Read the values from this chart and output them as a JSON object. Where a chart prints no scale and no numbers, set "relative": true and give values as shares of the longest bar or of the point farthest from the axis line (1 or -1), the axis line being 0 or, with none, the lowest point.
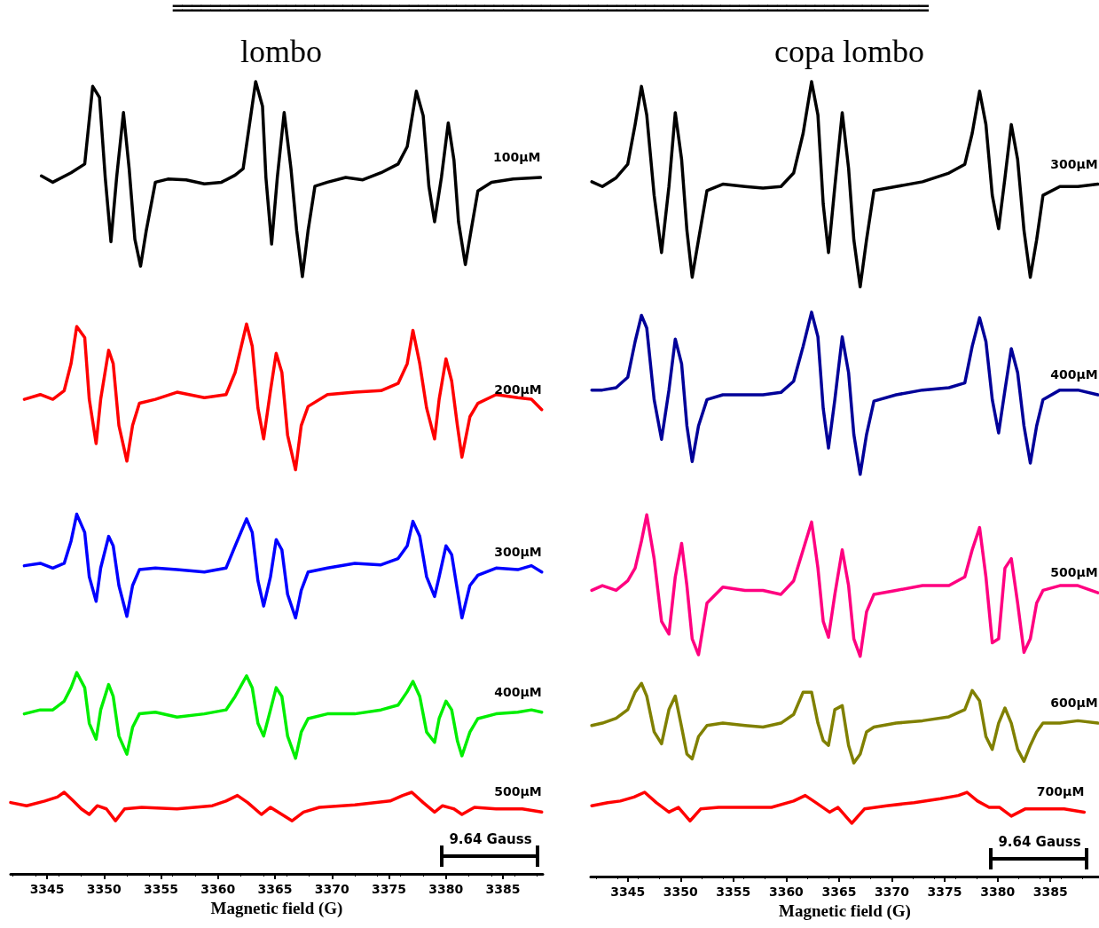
{
  "chart_data": [
    {
      "type": "line",
      "title": "lombo",
      "xlabel": "Magnetic field (G)",
      "relative": true,
      "legend": false,
      "grid": false,
      "marker": "none",
      "line_style": "solid",
      "xlim": [
        3341.8,
        3388.5
      ],
      "xticks": [
        3345,
        3350,
        3355,
        3360,
        3365,
        3370,
        3375,
        3380,
        3385
      ],
      "annotations": [
        "9.64 Gauss",
        "================================================================================"
      ],
      "series": [
        {
          "name": "100μM",
          "color": "#000000",
          "x": [
            3344.5,
            3345.5,
            3347.1,
            3348.3,
            3349.0,
            3349.6,
            3350.1,
            3350.6,
            3351.1,
            3351.7,
            3352.2,
            3352.7,
            3353.2,
            3353.7,
            3354.5,
            3355.6,
            3357.2,
            3358.8,
            3360.3,
            3361.5,
            3362.2,
            3363.3,
            3363.9,
            3364.2,
            3364.7,
            3365.2,
            3365.8,
            3366.4,
            3366.9,
            3367.4,
            3367.9,
            3368.5,
            3369.6,
            3371.2,
            3372.7,
            3374.3,
            3375.8,
            3376.6,
            3377.4,
            3378.0,
            3378.5,
            3379.0,
            3379.6,
            3380.2,
            3380.7,
            3381.1,
            3381.7,
            3382.2,
            3382.8,
            3384.0,
            3385.9,
            3388.3
          ],
          "values": [
            0.881,
            0.873,
            0.885,
            0.896,
            0.994,
            0.98,
            0.879,
            0.798,
            0.879,
            0.961,
            0.89,
            0.801,
            0.767,
            0.812,
            0.873,
            0.877,
            0.876,
            0.871,
            0.873,
            0.882,
            0.89,
            1.0,
            0.969,
            0.879,
            0.795,
            0.879,
            0.961,
            0.89,
            0.812,
            0.754,
            0.812,
            0.868,
            0.873,
            0.879,
            0.876,
            0.885,
            0.896,
            0.918,
            0.988,
            0.957,
            0.868,
            0.823,
            0.879,
            0.948,
            0.901,
            0.823,
            0.769,
            0.812,
            0.862,
            0.873,
            0.877,
            0.879
          ]
        },
        {
          "name": "200μM",
          "color": "#ff0000",
          "x": [
            3343.0,
            3344.4,
            3345.5,
            3346.5,
            3347.1,
            3347.6,
            3348.3,
            3348.7,
            3349.3,
            3349.7,
            3350.4,
            3350.8,
            3351.3,
            3352.0,
            3352.5,
            3353.1,
            3354.5,
            3356.4,
            3358.8,
            3360.7,
            3361.5,
            3362.5,
            3363.0,
            3363.5,
            3364.0,
            3364.6,
            3365.1,
            3365.6,
            3366.1,
            3366.8,
            3367.3,
            3367.9,
            3369.6,
            3372.0,
            3374.3,
            3375.8,
            3376.6,
            3377.1,
            3377.7,
            3378.3,
            3379.0,
            3379.4,
            3380.0,
            3380.5,
            3381.0,
            3381.4,
            3382.1,
            3382.8,
            3384.4,
            3386.3,
            3387.5,
            3388.4
          ],
          "values": [
            0.599,
            0.605,
            0.599,
            0.61,
            0.644,
            0.691,
            0.677,
            0.599,
            0.543,
            0.599,
            0.661,
            0.644,
            0.566,
            0.521,
            0.566,
            0.594,
            0.599,
            0.608,
            0.601,
            0.605,
            0.633,
            0.694,
            0.666,
            0.588,
            0.549,
            0.61,
            0.657,
            0.633,
            0.554,
            0.51,
            0.566,
            0.59,
            0.605,
            0.608,
            0.61,
            0.619,
            0.644,
            0.686,
            0.644,
            0.588,
            0.549,
            0.599,
            0.65,
            0.622,
            0.566,
            0.526,
            0.577,
            0.594,
            0.605,
            0.601,
            0.599,
            0.586
          ]
        },
        {
          "name": "300μM",
          "color": "#0000ff",
          "x": [
            3343.0,
            3344.4,
            3345.5,
            3346.5,
            3347.1,
            3347.6,
            3348.3,
            3348.7,
            3349.3,
            3349.7,
            3350.4,
            3350.8,
            3351.3,
            3352.0,
            3352.5,
            3353.1,
            3354.5,
            3356.4,
            3358.8,
            3360.7,
            3361.5,
            3362.5,
            3363.0,
            3363.5,
            3364.0,
            3364.6,
            3365.1,
            3365.6,
            3366.1,
            3366.8,
            3367.3,
            3367.9,
            3369.6,
            3372.0,
            3374.3,
            3375.8,
            3376.6,
            3377.1,
            3377.7,
            3378.3,
            3379.0,
            3379.4,
            3380.0,
            3380.5,
            3381.0,
            3381.4,
            3382.1,
            3382.8,
            3384.4,
            3386.3,
            3387.5,
            3388.4
          ],
          "values": [
            0.389,
            0.392,
            0.386,
            0.392,
            0.42,
            0.454,
            0.431,
            0.375,
            0.344,
            0.386,
            0.426,
            0.414,
            0.364,
            0.325,
            0.364,
            0.384,
            0.386,
            0.384,
            0.381,
            0.386,
            0.414,
            0.448,
            0.431,
            0.37,
            0.338,
            0.375,
            0.422,
            0.409,
            0.353,
            0.323,
            0.358,
            0.381,
            0.386,
            0.392,
            0.39,
            0.398,
            0.414,
            0.445,
            0.426,
            0.375,
            0.35,
            0.375,
            0.414,
            0.403,
            0.358,
            0.323,
            0.364,
            0.377,
            0.386,
            0.384,
            0.389,
            0.381
          ]
        },
        {
          "name": "400μM",
          "color": "#00ee00",
          "x": [
            3343.0,
            3344.4,
            3345.5,
            3346.5,
            3347.1,
            3347.6,
            3348.3,
            3348.7,
            3349.3,
            3349.7,
            3350.4,
            3350.8,
            3351.3,
            3352.0,
            3352.5,
            3353.1,
            3354.5,
            3356.4,
            3358.8,
            3360.7,
            3361.5,
            3362.5,
            3363.0,
            3363.5,
            3364.0,
            3364.6,
            3365.1,
            3365.6,
            3366.1,
            3366.8,
            3367.3,
            3367.9,
            3369.6,
            3372.0,
            3374.3,
            3375.8,
            3376.6,
            3377.1,
            3377.7,
            3378.3,
            3379.0,
            3379.4,
            3380.0,
            3380.5,
            3381.0,
            3381.4,
            3382.1,
            3382.8,
            3384.4,
            3386.3,
            3387.5,
            3388.4
          ],
          "values": [
            0.202,
            0.207,
            0.207,
            0.218,
            0.235,
            0.254,
            0.235,
            0.19,
            0.17,
            0.207,
            0.239,
            0.224,
            0.174,
            0.151,
            0.185,
            0.202,
            0.204,
            0.198,
            0.202,
            0.207,
            0.224,
            0.25,
            0.235,
            0.19,
            0.174,
            0.207,
            0.235,
            0.224,
            0.174,
            0.146,
            0.179,
            0.196,
            0.202,
            0.202,
            0.207,
            0.213,
            0.23,
            0.243,
            0.224,
            0.179,
            0.166,
            0.196,
            0.218,
            0.207,
            0.168,
            0.149,
            0.179,
            0.196,
            0.202,
            0.204,
            0.207,
            0.204
          ]
        },
        {
          "name": "500μM",
          "color": "#ff0000",
          "x": [
            3341.8,
            3343.2,
            3344.8,
            3345.9,
            3346.5,
            3347.3,
            3348.0,
            3348.7,
            3349.4,
            3350.2,
            3351.0,
            3351.8,
            3353.3,
            3356.4,
            3359.5,
            3360.7,
            3361.7,
            3362.6,
            3363.8,
            3364.6,
            3365.6,
            3366.5,
            3367.5,
            3368.9,
            3372.0,
            3375.1,
            3376.2,
            3377.0,
            3378.0,
            3379.0,
            3379.7,
            3380.7,
            3381.4,
            3382.5,
            3384.4,
            3386.7,
            3388.4
          ],
          "values": [
            0.09,
            0.086,
            0.092,
            0.097,
            0.103,
            0.092,
            0.082,
            0.075,
            0.086,
            0.082,
            0.067,
            0.082,
            0.084,
            0.082,
            0.086,
            0.092,
            0.099,
            0.09,
            0.075,
            0.084,
            0.075,
            0.067,
            0.078,
            0.084,
            0.087,
            0.092,
            0.099,
            0.103,
            0.09,
            0.078,
            0.086,
            0.082,
            0.075,
            0.084,
            0.082,
            0.082,
            0.078
          ]
        }
      ]
    },
    {
      "type": "line",
      "title": "copa lombo",
      "xlabel": "Magnetic field (G)",
      "relative": true,
      "legend": false,
      "grid": false,
      "marker": "none",
      "line_style": "solid",
      "xlim": [
        3341.5,
        3389.6
      ],
      "xticks": [
        3345,
        3350,
        3355,
        3360,
        3365,
        3370,
        3375,
        3380,
        3385
      ],
      "annotations": [
        "9.64 Gauss"
      ],
      "series": [
        {
          "name": "300μM",
          "color": "#000000",
          "x": [
            3341.6,
            3342.6,
            3343.9,
            3345.0,
            3345.7,
            3346.3,
            3346.8,
            3347.5,
            3348.2,
            3348.9,
            3349.5,
            3350.1,
            3350.6,
            3351.1,
            3351.7,
            3352.5,
            3354.0,
            3356.1,
            3357.8,
            3359.5,
            3360.7,
            3361.6,
            3362.4,
            3363.0,
            3363.5,
            3364.0,
            3364.6,
            3365.3,
            3365.9,
            3366.4,
            3367.0,
            3367.6,
            3368.3,
            3370.4,
            3372.9,
            3375.4,
            3376.9,
            3377.6,
            3378.3,
            3378.9,
            3379.5,
            3380.1,
            3380.7,
            3381.3,
            3381.9,
            3382.5,
            3383.1,
            3383.7,
            3384.3,
            3385.9,
            3387.6,
            3389.5
          ],
          "values": [
            0.874,
            0.868,
            0.879,
            0.896,
            0.946,
            0.994,
            0.958,
            0.857,
            0.785,
            0.868,
            0.961,
            0.902,
            0.813,
            0.754,
            0.801,
            0.863,
            0.871,
            0.868,
            0.866,
            0.868,
            0.885,
            0.935,
            1.0,
            0.958,
            0.846,
            0.785,
            0.868,
            0.961,
            0.891,
            0.801,
            0.742,
            0.801,
            0.863,
            0.868,
            0.874,
            0.885,
            0.896,
            0.935,
            0.988,
            0.946,
            0.857,
            0.815,
            0.879,
            0.946,
            0.902,
            0.813,
            0.754,
            0.801,
            0.857,
            0.868,
            0.868,
            0.871
          ]
        },
        {
          "name": "400μM",
          "color": "#000099",
          "x": [
            3341.6,
            3342.6,
            3343.9,
            3345.0,
            3345.7,
            3346.3,
            3346.8,
            3347.5,
            3348.2,
            3348.9,
            3349.5,
            3350.1,
            3350.6,
            3351.1,
            3351.7,
            3352.5,
            3354.0,
            3356.1,
            3357.8,
            3359.5,
            3360.7,
            3361.6,
            3362.4,
            3363.0,
            3363.5,
            3364.0,
            3364.6,
            3365.3,
            3365.9,
            3366.4,
            3367.0,
            3367.6,
            3368.3,
            3370.4,
            3372.9,
            3375.4,
            3376.9,
            3377.6,
            3378.3,
            3378.9,
            3379.5,
            3380.1,
            3380.7,
            3381.3,
            3381.9,
            3382.5,
            3383.1,
            3383.7,
            3384.3,
            3385.9,
            3387.6,
            3389.5
          ],
          "values": [
            0.612,
            0.612,
            0.615,
            0.628,
            0.673,
            0.706,
            0.69,
            0.6,
            0.55,
            0.612,
            0.676,
            0.645,
            0.567,
            0.522,
            0.567,
            0.6,
            0.606,
            0.606,
            0.606,
            0.609,
            0.623,
            0.667,
            0.71,
            0.679,
            0.589,
            0.539,
            0.6,
            0.679,
            0.634,
            0.556,
            0.506,
            0.556,
            0.598,
            0.606,
            0.612,
            0.615,
            0.621,
            0.667,
            0.703,
            0.673,
            0.6,
            0.558,
            0.612,
            0.664,
            0.634,
            0.567,
            0.52,
            0.567,
            0.6,
            0.612,
            0.612,
            0.606
          ]
        },
        {
          "name": "500μM",
          "color": "#ff0080",
          "x": [
            3341.6,
            3342.6,
            3343.9,
            3345.0,
            3345.7,
            3346.3,
            3346.8,
            3347.5,
            3348.2,
            3348.9,
            3349.5,
            3350.1,
            3350.6,
            3351.1,
            3351.7,
            3352.5,
            3354.0,
            3356.1,
            3357.8,
            3359.5,
            3360.7,
            3361.6,
            3362.4,
            3363.0,
            3363.5,
            3364.0,
            3364.6,
            3365.3,
            3365.9,
            3366.4,
            3367.0,
            3367.6,
            3368.3,
            3370.4,
            3372.9,
            3375.4,
            3376.9,
            3377.6,
            3378.3,
            3378.9,
            3379.5,
            3380.1,
            3380.7,
            3381.3,
            3381.9,
            3382.5,
            3383.1,
            3383.7,
            3384.3,
            3385.9,
            3387.6,
            3389.5
          ],
          "values": [
            0.36,
            0.366,
            0.36,
            0.372,
            0.388,
            0.422,
            0.455,
            0.4,
            0.321,
            0.305,
            0.377,
            0.419,
            0.366,
            0.299,
            0.279,
            0.344,
            0.364,
            0.36,
            0.36,
            0.355,
            0.372,
            0.411,
            0.446,
            0.388,
            0.321,
            0.301,
            0.355,
            0.411,
            0.366,
            0.299,
            0.277,
            0.333,
            0.355,
            0.36,
            0.366,
            0.366,
            0.377,
            0.411,
            0.439,
            0.377,
            0.294,
            0.299,
            0.388,
            0.4,
            0.344,
            0.282,
            0.299,
            0.344,
            0.36,
            0.366,
            0.366,
            0.357
          ]
        },
        {
          "name": "600μM",
          "color": "#808000",
          "x": [
            3341.6,
            3342.6,
            3343.9,
            3345.0,
            3345.7,
            3346.3,
            3346.8,
            3347.5,
            3348.2,
            3348.9,
            3349.5,
            3350.1,
            3350.6,
            3351.1,
            3351.7,
            3352.5,
            3354.0,
            3356.1,
            3357.8,
            3359.5,
            3360.7,
            3361.6,
            3362.4,
            3363.0,
            3363.5,
            3364.0,
            3364.6,
            3365.3,
            3365.9,
            3366.4,
            3367.0,
            3367.6,
            3368.3,
            3370.4,
            3372.9,
            3375.4,
            3376.9,
            3377.6,
            3378.3,
            3378.9,
            3379.5,
            3380.1,
            3380.7,
            3381.3,
            3381.9,
            3382.5,
            3383.1,
            3383.7,
            3384.3,
            3385.9,
            3387.6,
            3389.5
          ],
          "values": [
            0.19,
            0.193,
            0.199,
            0.21,
            0.232,
            0.243,
            0.227,
            0.182,
            0.167,
            0.21,
            0.227,
            0.188,
            0.154,
            0.148,
            0.176,
            0.19,
            0.193,
            0.19,
            0.188,
            0.193,
            0.204,
            0.232,
            0.232,
            0.193,
            0.171,
            0.165,
            0.21,
            0.215,
            0.165,
            0.143,
            0.154,
            0.182,
            0.188,
            0.193,
            0.196,
            0.201,
            0.21,
            0.234,
            0.221,
            0.176,
            0.16,
            0.193,
            0.212,
            0.193,
            0.16,
            0.145,
            0.165,
            0.182,
            0.193,
            0.193,
            0.196,
            0.193
          ]
        },
        {
          "name": "700μM",
          "color": "#ff0000",
          "x": [
            3341.6,
            3343.1,
            3344.3,
            3345.6,
            3346.6,
            3347.7,
            3348.9,
            3349.8,
            3350.9,
            3351.9,
            3353.6,
            3356.1,
            3358.6,
            3360.7,
            3361.8,
            3362.8,
            3364.1,
            3364.9,
            3366.2,
            3367.4,
            3369.5,
            3372.1,
            3374.6,
            3376.3,
            3377.1,
            3378.1,
            3379.2,
            3380.2,
            3381.3,
            3382.6,
            3384.7,
            3386.3,
            3388.2
          ],
          "values": [
            0.089,
            0.093,
            0.095,
            0.1,
            0.106,
            0.093,
            0.081,
            0.087,
            0.07,
            0.085,
            0.087,
            0.087,
            0.087,
            0.095,
            0.102,
            0.093,
            0.081,
            0.087,
            0.067,
            0.085,
            0.089,
            0.093,
            0.098,
            0.102,
            0.106,
            0.095,
            0.087,
            0.087,
            0.076,
            0.085,
            0.085,
            0.085,
            0.081
          ]
        }
      ]
    }
  ]
}
